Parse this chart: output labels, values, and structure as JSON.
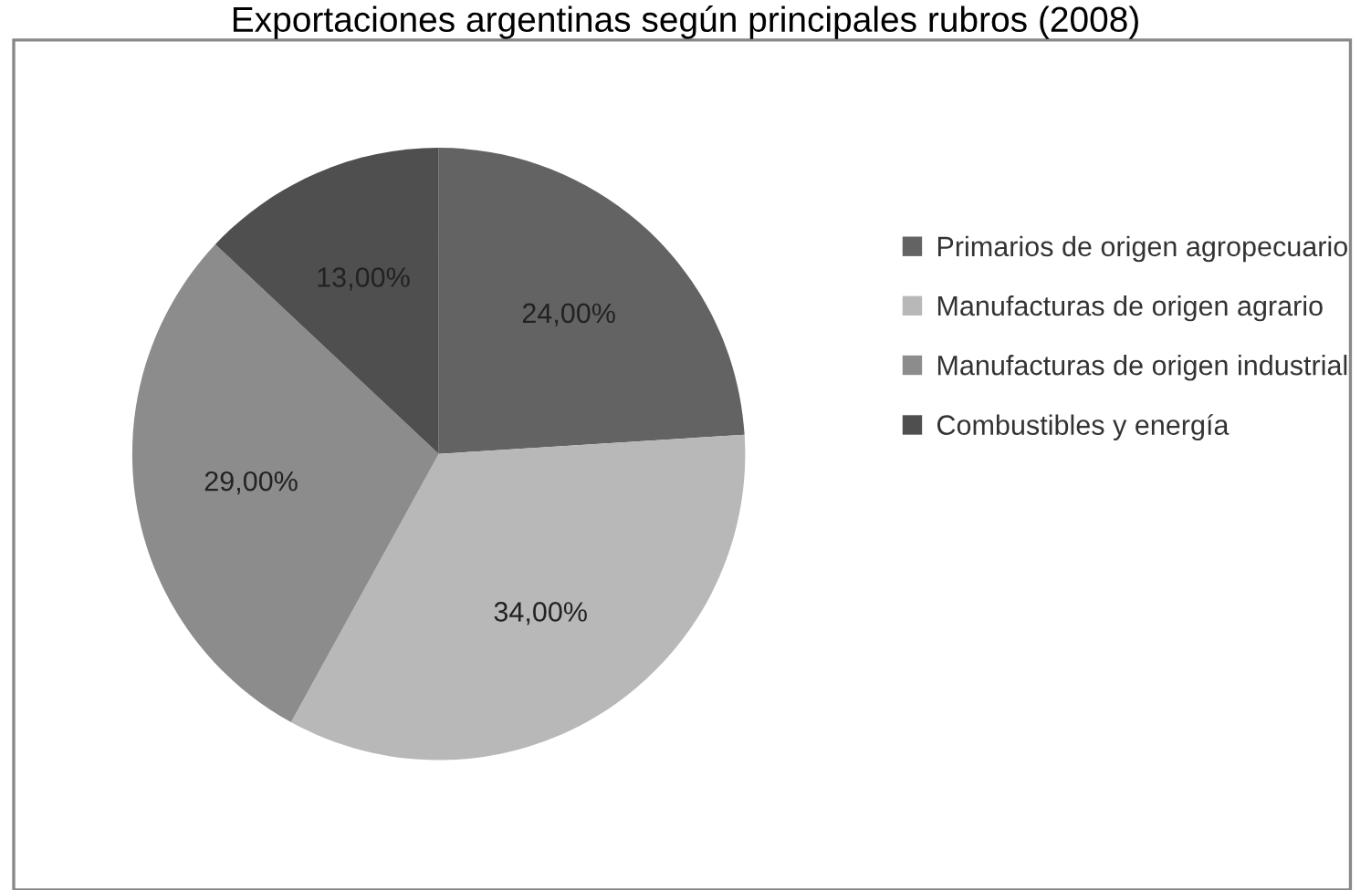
{
  "chart_data": {
    "type": "pie",
    "title": "Exportaciones argentinas según principales rubros (2008)",
    "categories": [
      "Primarios de origen agropecuario",
      "Manufacturas de origen agrario",
      "Manufacturas de origen industrial",
      "Combustibles y energía"
    ],
    "values": [
      24,
      34,
      29,
      13
    ],
    "value_labels": [
      "24,00%",
      "34,00%",
      "29,00%",
      "13,00%"
    ],
    "colors": [
      "#636363",
      "#b8b8b8",
      "#8c8c8c",
      "#4f4f4f"
    ],
    "legend": "right"
  }
}
